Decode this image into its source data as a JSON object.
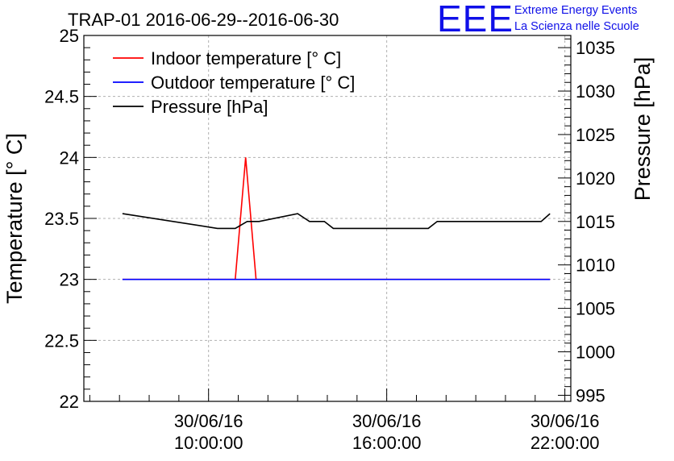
{
  "logo": {
    "mark": "EEE",
    "line1": "Extreme Energy Events",
    "line2": "La Scienza nelle Scuole",
    "color": "#1010e8"
  },
  "chart_data": {
    "type": "line",
    "title": "TRAP-01 2016-06-29--2016-06-30",
    "ylabel": "Temperature [° C]",
    "y2label": "Pressure [hPa]",
    "xlabel": "",
    "x_unit": "hours (30/06/16)",
    "xlim": [
      5.8,
      22.2
    ],
    "ylim": [
      22,
      25
    ],
    "y2lim": [
      994.3,
      1036.4
    ],
    "x_ticks": [
      {
        "x": 10,
        "line1": "30/06/16",
        "line2": "10:00:00"
      },
      {
        "x": 16,
        "line1": "30/06/16",
        "line2": "16:00:00"
      },
      {
        "x": 22,
        "line1": "30/06/16",
        "line2": "22:00:00"
      }
    ],
    "y_ticks": [
      "22",
      "22.5",
      "23",
      "23.5",
      "24",
      "24.5",
      "25"
    ],
    "y2_ticks": [
      "995",
      "1000",
      "1005",
      "1010",
      "1015",
      "1020",
      "1025",
      "1030",
      "1035"
    ],
    "grid": true,
    "legend_position": "top-left",
    "series": [
      {
        "name": "Indoor temperature [° C]",
        "color": "#ff0000",
        "axis": "left",
        "x": [
          7.1,
          10.9,
          11.25,
          11.6,
          21.5
        ],
        "y": [
          23.0,
          23.0,
          24.0,
          23.0,
          23.0
        ]
      },
      {
        "name": "Outdoor temperature [° C]",
        "color": "#0000ff",
        "axis": "left",
        "x": [
          7.1,
          21.5
        ],
        "y": [
          23.0,
          23.0
        ]
      },
      {
        "name": "Pressure [hPa]",
        "color": "#000000",
        "axis": "right",
        "x": [
          7.1,
          10.3,
          10.9,
          11.3,
          11.7,
          13.0,
          13.4,
          13.9,
          14.2,
          17.4,
          17.7,
          21.2,
          21.5
        ],
        "y": [
          1015.9,
          1014.2,
          1014.2,
          1015.0,
          1015.0,
          1015.9,
          1015.0,
          1015.0,
          1014.2,
          1014.2,
          1015.0,
          1015.0,
          1015.9
        ]
      }
    ]
  }
}
